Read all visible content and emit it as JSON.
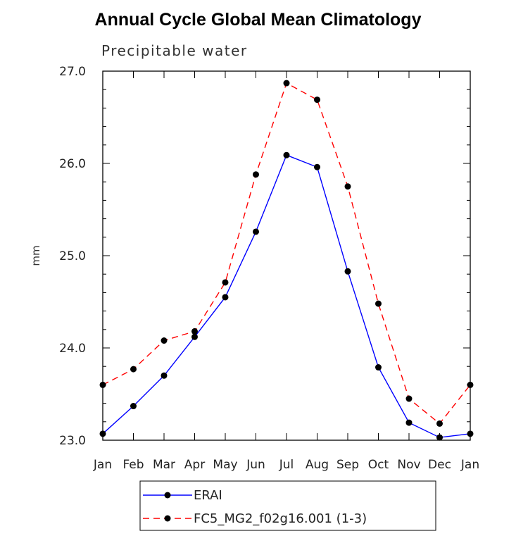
{
  "chart_data": {
    "type": "line",
    "title": "Annual Cycle Global Mean Climatology",
    "subtitle": "Precipitable water",
    "ylabel": "mm",
    "xlabel": "",
    "categories": [
      "Jan",
      "Feb",
      "Mar",
      "Apr",
      "May",
      "Jun",
      "Jul",
      "Aug",
      "Sep",
      "Oct",
      "Nov",
      "Dec",
      "Jan"
    ],
    "ylim": [
      23.0,
      27.0
    ],
    "yticks": [
      "23.0",
      "24.0",
      "25.0",
      "26.0",
      "27.0"
    ],
    "grid": false,
    "legend_position": "bottom",
    "series": [
      {
        "name": "ERAI",
        "color": "#0000ff",
        "style": "solid",
        "values": [
          23.07,
          23.37,
          23.7,
          24.12,
          24.55,
          25.26,
          26.09,
          25.96,
          24.83,
          23.79,
          23.19,
          23.03,
          23.07
        ]
      },
      {
        "name": "FC5_MG2_f02g16.001 (1-3)",
        "color": "#ff0000",
        "style": "dashed",
        "values": [
          23.6,
          23.77,
          24.08,
          24.18,
          24.71,
          25.88,
          26.87,
          26.69,
          25.75,
          24.48,
          23.45,
          23.18,
          23.6
        ]
      }
    ]
  }
}
